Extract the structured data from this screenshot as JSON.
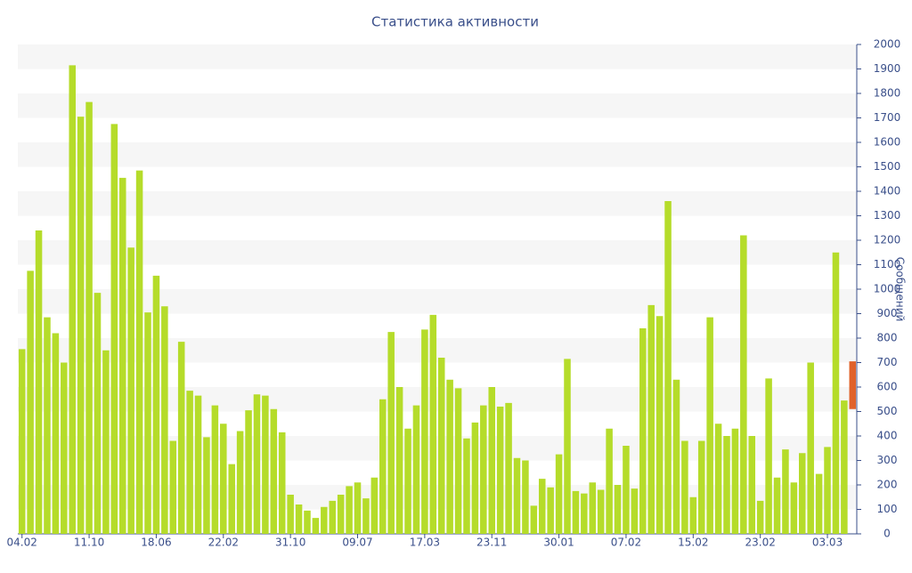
{
  "chart_data": {
    "type": "bar",
    "title": "Статистика активности",
    "y_label": "Сообщений",
    "categories": [
      "04.02",
      null,
      null,
      null,
      null,
      null,
      null,
      null,
      "11.10",
      null,
      null,
      null,
      null,
      null,
      null,
      null,
      "18.06",
      null,
      null,
      null,
      null,
      null,
      null,
      null,
      "22.02",
      null,
      null,
      null,
      null,
      null,
      null,
      null,
      "31.10",
      null,
      null,
      null,
      null,
      null,
      null,
      null,
      "09.07",
      null,
      null,
      null,
      null,
      null,
      null,
      null,
      "17.03",
      null,
      null,
      null,
      null,
      null,
      null,
      null,
      "23.11",
      null,
      null,
      null,
      null,
      null,
      null,
      null,
      "30.01",
      null,
      null,
      null,
      null,
      null,
      null,
      null,
      "07.02",
      null,
      null,
      null,
      null,
      null,
      null,
      null,
      "15.02",
      null,
      null,
      null,
      null,
      null,
      null,
      null,
      "23.02",
      null,
      null,
      null,
      null,
      null,
      null,
      null,
      "03.03",
      null,
      null,
      null
    ],
    "series": [
      {
        "color": "#b5dc2a",
        "values": [
          755,
          1075,
          1240,
          885,
          820,
          700,
          1915,
          1705,
          1765,
          985,
          750,
          1675,
          1455,
          1170,
          1485,
          905,
          1055,
          930,
          380,
          785,
          585,
          565,
          395,
          525,
          450,
          285,
          420,
          505,
          570,
          565,
          510,
          415,
          160,
          120,
          95,
          65,
          110,
          135,
          160,
          195,
          210,
          145,
          230,
          550,
          825,
          600,
          430,
          525,
          835,
          895,
          720,
          630,
          595,
          390,
          455,
          525,
          600,
          520,
          535,
          310,
          300,
          115,
          225,
          190,
          325,
          715,
          175,
          165,
          210,
          180,
          430,
          200,
          360,
          185,
          840,
          935,
          890,
          1360,
          630,
          380,
          150,
          380,
          885,
          450,
          400,
          430,
          1220,
          400,
          135,
          635,
          230,
          345,
          210,
          330,
          700,
          245,
          355,
          1150,
          545,
          null
        ]
      },
      {
        "color": "#e0622a",
        "low": [
          null,
          null,
          null,
          null,
          null,
          null,
          null,
          null,
          null,
          null,
          null,
          null,
          null,
          null,
          null,
          null,
          null,
          null,
          null,
          null,
          null,
          null,
          null,
          null,
          null,
          null,
          null,
          null,
          null,
          null,
          null,
          null,
          null,
          null,
          null,
          null,
          null,
          null,
          null,
          null,
          null,
          null,
          null,
          null,
          null,
          null,
          null,
          null,
          null,
          null,
          null,
          null,
          null,
          null,
          null,
          null,
          null,
          null,
          null,
          null,
          null,
          null,
          null,
          null,
          null,
          null,
          null,
          null,
          null,
          null,
          null,
          null,
          null,
          null,
          null,
          null,
          null,
          null,
          null,
          null,
          null,
          null,
          null,
          null,
          null,
          null,
          null,
          null,
          null,
          null,
          null,
          null,
          null,
          null,
          null,
          null,
          null,
          null,
          null,
          510
        ],
        "high": [
          null,
          null,
          null,
          null,
          null,
          null,
          null,
          null,
          null,
          null,
          null,
          null,
          null,
          null,
          null,
          null,
          null,
          null,
          null,
          null,
          null,
          null,
          null,
          null,
          null,
          null,
          null,
          null,
          null,
          null,
          null,
          null,
          null,
          null,
          null,
          null,
          null,
          null,
          null,
          null,
          null,
          null,
          null,
          null,
          null,
          null,
          null,
          null,
          null,
          null,
          null,
          null,
          null,
          null,
          null,
          null,
          null,
          null,
          null,
          null,
          null,
          null,
          null,
          null,
          null,
          null,
          null,
          null,
          null,
          null,
          null,
          null,
          null,
          null,
          null,
          null,
          null,
          null,
          null,
          null,
          null,
          null,
          null,
          null,
          null,
          null,
          null,
          null,
          null,
          null,
          null,
          null,
          null,
          null,
          null,
          null,
          null,
          null,
          null,
          705
        ]
      }
    ],
    "ylim": [
      0,
      2000
    ],
    "yticks": [
      0,
      100,
      200,
      300,
      400,
      500,
      600,
      700,
      800,
      900,
      1000,
      1100,
      1200,
      1300,
      1400,
      1500,
      1600,
      1700,
      1800,
      1900,
      2000
    ],
    "grid": "bands"
  }
}
